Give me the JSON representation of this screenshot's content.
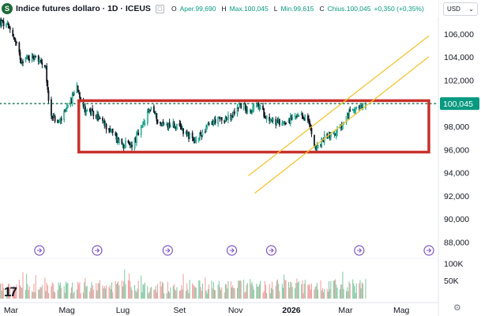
{
  "header": {
    "symbol_icon": "S",
    "title": "Indice futures dollaro · 1D · ICEUS",
    "flag_icon": "flag-icon",
    "ohlc": [
      {
        "label": "O",
        "value": "Aper.99,690"
      },
      {
        "label": "H",
        "value": "Max.100,045"
      },
      {
        "label": "L",
        "value": "Min.99,615"
      },
      {
        "label": "C",
        "value": "Chius.100,045"
      }
    ],
    "change": "+0,350 (+0,35%)",
    "currency": "USD",
    "currency_chevron": "⌄"
  },
  "colors": {
    "up": "#089981",
    "down": "#131722",
    "rect": "#c8312b",
    "channel": "#f4c430",
    "last_price_line": "#1e7a56",
    "event_icon": "#7e57c2",
    "vol_up": "#83c9a3",
    "vol_down": "#f0a0a0"
  },
  "chart_data": {
    "type": "candlestick",
    "y_axis": {
      "ticks": [
        "106,000",
        "104,000",
        "102,000",
        "98,000",
        "96,000",
        "94,000",
        "92,000",
        "90,000",
        "88,000"
      ],
      "range": [
        86.8,
        107.5
      ]
    },
    "volume_axis": {
      "ticks": [
        "100K",
        "50K"
      ],
      "range": [
        0,
        110000
      ]
    },
    "x_axis": {
      "labels": [
        "Mar",
        "Mag",
        "Lug",
        "Set",
        "Nov",
        "2026",
        "Mar",
        "Mag"
      ],
      "bold_label": "2026"
    },
    "last_price": {
      "value": 100.045,
      "label": "100,045"
    },
    "price_path": [
      {
        "date": "2025-02-17",
        "value": 107.1
      },
      {
        "date": "2025-03-01",
        "value": 106.5
      },
      {
        "date": "2025-03-12",
        "value": 103.8
      },
      {
        "date": "2025-03-28",
        "value": 104.2
      },
      {
        "date": "2025-04-08",
        "value": 102.9
      },
      {
        "date": "2025-04-12",
        "value": 99.4
      },
      {
        "date": "2025-04-21",
        "value": 98.3
      },
      {
        "date": "2025-05-02",
        "value": 99.6
      },
      {
        "date": "2025-05-12",
        "value": 101.6
      },
      {
        "date": "2025-05-20",
        "value": 99.6
      },
      {
        "date": "2025-06-03",
        "value": 98.9
      },
      {
        "date": "2025-06-15",
        "value": 97.9
      },
      {
        "date": "2025-06-30",
        "value": 96.6
      },
      {
        "date": "2025-07-10",
        "value": 96.4
      },
      {
        "date": "2025-07-22",
        "value": 97.9
      },
      {
        "date": "2025-08-01",
        "value": 99.8
      },
      {
        "date": "2025-08-10",
        "value": 98.3
      },
      {
        "date": "2025-08-25",
        "value": 98.2
      },
      {
        "date": "2025-09-08",
        "value": 97.6
      },
      {
        "date": "2025-09-17",
        "value": 96.6
      },
      {
        "date": "2025-09-28",
        "value": 97.8
      },
      {
        "date": "2025-10-10",
        "value": 98.6
      },
      {
        "date": "2025-10-28",
        "value": 98.8
      },
      {
        "date": "2025-11-05",
        "value": 100.0
      },
      {
        "date": "2025-11-18",
        "value": 99.5
      },
      {
        "date": "2025-11-26",
        "value": 99.9
      },
      {
        "date": "2025-12-05",
        "value": 98.9
      },
      {
        "date": "2025-12-18",
        "value": 98.3
      },
      {
        "date": "2026-01-05",
        "value": 98.8
      },
      {
        "date": "2026-01-18",
        "value": 98.9
      },
      {
        "date": "2026-01-28",
        "value": 96.1
      },
      {
        "date": "2026-02-08",
        "value": 97.3
      },
      {
        "date": "2026-02-18",
        "value": 97.5
      },
      {
        "date": "2026-02-28",
        "value": 98.3
      },
      {
        "date": "2026-03-06",
        "value": 99.4
      },
      {
        "date": "2026-03-13",
        "value": 99.8
      },
      {
        "date": "2026-03-17",
        "value": 99.5
      },
      {
        "date": "2026-03-23",
        "value": 100.045
      }
    ],
    "rectangle": {
      "date_start": "2025-05-14",
      "date_end": "2026-05-31",
      "price_top": 100.3,
      "price_bottom": 95.85
    },
    "channel_lines": [
      {
        "date_start": "2025-11-15",
        "price_start": 93.8,
        "date_end": "2026-05-31",
        "price_end": 105.9
      },
      {
        "date_start": "2025-11-22",
        "price_start": 92.3,
        "date_end": "2026-05-31",
        "price_end": 104.1
      }
    ],
    "event_markers": [
      "2025-04-01",
      "2025-06-03",
      "2025-08-19",
      "2025-10-28",
      "2025-12-10",
      "2026-03-16",
      "2026-05-31"
    ]
  },
  "footer": {
    "logo": "17",
    "settings_icon": "⚙"
  }
}
